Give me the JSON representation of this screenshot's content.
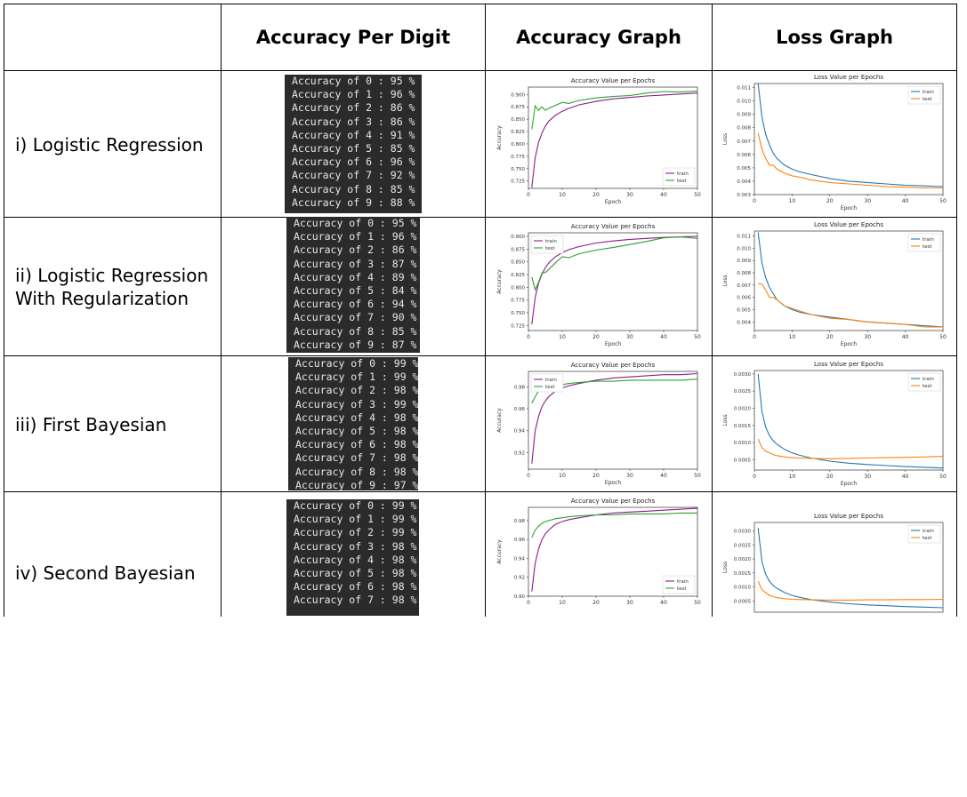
{
  "headers": [
    "",
    "Accuracy Per Digit",
    "Accuracy Graph",
    "Loss Graph"
  ],
  "rows": [
    {
      "label": [
        "i) Logistic Regression"
      ],
      "digits": [
        {
          "digit": "0",
          "pct": "95"
        },
        {
          "digit": "1",
          "pct": "96"
        },
        {
          "digit": "2",
          "pct": "86"
        },
        {
          "digit": "3",
          "pct": "86"
        },
        {
          "digit": "4",
          "pct": "91"
        },
        {
          "digit": "5",
          "pct": "85"
        },
        {
          "digit": "6",
          "pct": "96"
        },
        {
          "digit": "7",
          "pct": "92"
        },
        {
          "digit": "8",
          "pct": "85"
        },
        {
          "digit": "9",
          "pct": "88"
        }
      ]
    },
    {
      "label": [
        "ii) Logistic Regression",
        "With Regularization"
      ],
      "digits": [
        {
          "digit": "0",
          "pct": "95"
        },
        {
          "digit": "1",
          "pct": "96"
        },
        {
          "digit": "2",
          "pct": "86"
        },
        {
          "digit": "3",
          "pct": "87"
        },
        {
          "digit": "4",
          "pct": "89"
        },
        {
          "digit": "5",
          "pct": "84"
        },
        {
          "digit": "6",
          "pct": "94"
        },
        {
          "digit": "7",
          "pct": "90"
        },
        {
          "digit": "8",
          "pct": "85"
        },
        {
          "digit": "9",
          "pct": "87"
        }
      ]
    },
    {
      "label": [
        "iii) First Bayesian"
      ],
      "digits": [
        {
          "digit": "0",
          "pct": "99"
        },
        {
          "digit": "1",
          "pct": "99"
        },
        {
          "digit": "2",
          "pct": "98"
        },
        {
          "digit": "3",
          "pct": "99"
        },
        {
          "digit": "4",
          "pct": "98"
        },
        {
          "digit": "5",
          "pct": "98"
        },
        {
          "digit": "6",
          "pct": "98"
        },
        {
          "digit": "7",
          "pct": "98"
        },
        {
          "digit": "8",
          "pct": "98"
        },
        {
          "digit": "9",
          "pct": "97"
        }
      ]
    },
    {
      "label": [
        "iv) Second Bayesian"
      ],
      "digits": [
        {
          "digit": "0",
          "pct": "99"
        },
        {
          "digit": "1",
          "pct": "99"
        },
        {
          "digit": "2",
          "pct": "99"
        },
        {
          "digit": "3",
          "pct": "98"
        },
        {
          "digit": "4",
          "pct": "98"
        },
        {
          "digit": "5",
          "pct": "98"
        },
        {
          "digit": "6",
          "pct": "98"
        },
        {
          "digit": "7",
          "pct": "98"
        }
      ]
    }
  ],
  "chart_data": [
    {
      "type": "line",
      "title": "Accuracy Value per Epochs",
      "xlabel": "Epoch",
      "ylabel": "Accuracy",
      "xlim": [
        0,
        50
      ],
      "ylim": [
        0.71,
        0.915
      ],
      "x_ticks": [
        0,
        10,
        20,
        30,
        40,
        50
      ],
      "y_ticks": [
        "0.725",
        "0.750",
        "0.775",
        "0.800",
        "0.825",
        "0.850",
        "0.875",
        "0.900"
      ],
      "legend": "bottom-right",
      "x": [
        1,
        2,
        3,
        4,
        5,
        6,
        8,
        10,
        12,
        15,
        20,
        25,
        30,
        35,
        40,
        45,
        50
      ],
      "series": [
        {
          "name": "train",
          "color": "#8a1a8a",
          "values": [
            0.712,
            0.772,
            0.803,
            0.822,
            0.836,
            0.846,
            0.858,
            0.866,
            0.872,
            0.879,
            0.886,
            0.891,
            0.894,
            0.897,
            0.899,
            0.901,
            0.903
          ]
        },
        {
          "name": "test",
          "color": "#2ca02c",
          "values": [
            0.83,
            0.877,
            0.868,
            0.875,
            0.868,
            0.872,
            0.878,
            0.884,
            0.882,
            0.888,
            0.893,
            0.896,
            0.898,
            0.903,
            0.906,
            0.905,
            0.907
          ]
        }
      ]
    },
    {
      "type": "line",
      "title": "Loss Value per Epochs",
      "xlabel": "Epoch",
      "ylabel": "Loss",
      "xlim": [
        0,
        50
      ],
      "ylim": [
        0.003,
        0.0113
      ],
      "x_ticks": [
        0,
        10,
        20,
        30,
        40,
        50
      ],
      "y_ticks": [
        "0.003",
        "0.004",
        "0.005",
        "0.006",
        "0.007",
        "0.008",
        "0.009",
        "0.010",
        "0.011"
      ],
      "legend": "top-right",
      "x": [
        1,
        2,
        3,
        4,
        5,
        6,
        8,
        10,
        12,
        15,
        20,
        25,
        30,
        35,
        40,
        45,
        50
      ],
      "series": [
        {
          "name": "train",
          "color": "#1f77b4",
          "values": [
            0.0113,
            0.0088,
            0.0075,
            0.0067,
            0.0061,
            0.0057,
            0.0052,
            0.0049,
            0.0047,
            0.0045,
            0.0042,
            0.004,
            0.0039,
            0.0038,
            0.0037,
            0.00365,
            0.0036
          ]
        },
        {
          "name": "test",
          "color": "#ff7f0e",
          "values": [
            0.0076,
            0.0064,
            0.0057,
            0.0052,
            0.0052,
            0.0049,
            0.0046,
            0.0044,
            0.0043,
            0.0041,
            0.0039,
            0.0038,
            0.0037,
            0.0036,
            0.00355,
            0.0035,
            0.0035
          ]
        }
      ]
    },
    {
      "type": "line",
      "title": "Accuracy Value per Epochs",
      "xlabel": "Epoch",
      "ylabel": "Accuracy",
      "xlim": [
        0,
        50
      ],
      "ylim": [
        0.715,
        0.907
      ],
      "x_ticks": [
        0,
        10,
        20,
        30,
        40,
        50
      ],
      "y_ticks": [
        "0.725",
        "0.750",
        "0.775",
        "0.800",
        "0.825",
        "0.850",
        "0.875",
        "0.900"
      ],
      "legend": "top-left",
      "x": [
        1,
        2,
        3,
        4,
        5,
        6,
        8,
        10,
        12,
        15,
        20,
        25,
        30,
        35,
        40,
        45,
        50
      ],
      "series": [
        {
          "name": "train",
          "color": "#8a1a8a",
          "values": [
            0.727,
            0.78,
            0.808,
            0.826,
            0.838,
            0.848,
            0.86,
            0.868,
            0.874,
            0.88,
            0.887,
            0.891,
            0.894,
            0.896,
            0.898,
            0.899,
            0.9
          ]
        },
        {
          "name": "test",
          "color": "#2ca02c",
          "values": [
            0.82,
            0.795,
            0.81,
            0.828,
            0.829,
            0.835,
            0.848,
            0.86,
            0.858,
            0.866,
            0.873,
            0.878,
            0.884,
            0.89,
            0.897,
            0.899,
            0.896
          ]
        }
      ]
    },
    {
      "type": "line",
      "title": "Loss Value per Epochs",
      "xlabel": "Epoch",
      "ylabel": "Loss",
      "xlim": [
        0,
        50
      ],
      "ylim": [
        0.0033,
        0.0114
      ],
      "x_ticks": [
        0,
        10,
        20,
        30,
        40,
        50
      ],
      "y_ticks": [
        "0.004",
        "0.005",
        "0.006",
        "0.007",
        "0.008",
        "0.009",
        "0.010",
        "0.011"
      ],
      "legend": "top-right",
      "x": [
        1,
        2,
        3,
        4,
        5,
        6,
        8,
        10,
        12,
        15,
        20,
        25,
        30,
        35,
        40,
        45,
        50
      ],
      "series": [
        {
          "name": "train",
          "color": "#1f77b4",
          "values": [
            0.0113,
            0.0088,
            0.0076,
            0.0068,
            0.0063,
            0.0058,
            0.0053,
            0.005,
            0.0048,
            0.0046,
            0.0044,
            0.0042,
            0.004,
            0.0039,
            0.0038,
            0.0037,
            0.0036
          ]
        },
        {
          "name": "test",
          "color": "#ff7f0e",
          "values": [
            0.0071,
            0.0071,
            0.0066,
            0.006,
            0.006,
            0.0058,
            0.0053,
            0.0051,
            0.0049,
            0.0046,
            0.0043,
            0.0042,
            0.004,
            0.0039,
            0.0038,
            0.0036,
            0.0036
          ]
        }
      ]
    },
    {
      "type": "line",
      "title": "Accuracy Value per Epochs",
      "xlabel": "Epoch",
      "ylabel": "Accuracy",
      "xlim": [
        0,
        50
      ],
      "ylim": [
        0.905,
        0.994
      ],
      "x_ticks": [
        0,
        10,
        20,
        30,
        40,
        50
      ],
      "y_ticks": [
        "0.92",
        "0.94",
        "0.96",
        "0.98"
      ],
      "legend": "top-left",
      "x": [
        1,
        2,
        3,
        4,
        5,
        6,
        8,
        10,
        12,
        15,
        20,
        25,
        30,
        35,
        40,
        45,
        50
      ],
      "series": [
        {
          "name": "train",
          "color": "#8a1a8a",
          "values": [
            0.91,
            0.94,
            0.953,
            0.962,
            0.967,
            0.971,
            0.976,
            0.979,
            0.981,
            0.983,
            0.986,
            0.988,
            0.989,
            0.99,
            0.991,
            0.991,
            0.992
          ]
        },
        {
          "name": "test",
          "color": "#2ca02c",
          "values": [
            0.965,
            0.971,
            0.976,
            0.978,
            0.979,
            0.98,
            0.981,
            0.982,
            0.983,
            0.984,
            0.985,
            0.985,
            0.986,
            0.986,
            0.986,
            0.986,
            0.987
          ]
        }
      ]
    },
    {
      "type": "line",
      "title": "Loss Value per Epochs",
      "xlabel": "Epoch",
      "ylabel": "Loss",
      "xlim": [
        0,
        50
      ],
      "ylim": [
        0.0002,
        0.0031
      ],
      "x_ticks": [
        0,
        10,
        20,
        30,
        40,
        50
      ],
      "y_ticks": [
        "0.0005",
        "0.0010",
        "0.0015",
        "0.0020",
        "0.0025",
        "0.0030"
      ],
      "legend": "top-right",
      "x": [
        1,
        2,
        3,
        4,
        5,
        6,
        8,
        10,
        12,
        15,
        20,
        25,
        30,
        35,
        40,
        45,
        50
      ],
      "series": [
        {
          "name": "train",
          "color": "#1f77b4",
          "values": [
            0.003,
            0.0019,
            0.00145,
            0.0012,
            0.00105,
            0.00095,
            0.0008,
            0.0007,
            0.00063,
            0.00055,
            0.00046,
            0.0004,
            0.00036,
            0.00033,
            0.0003,
            0.00028,
            0.00026
          ]
        },
        {
          "name": "test",
          "color": "#ff7f0e",
          "values": [
            0.0011,
            0.00085,
            0.00075,
            0.0007,
            0.00065,
            0.00062,
            0.00058,
            0.00056,
            0.00055,
            0.00054,
            0.00053,
            0.00054,
            0.00055,
            0.00056,
            0.00057,
            0.00058,
            0.0006
          ]
        }
      ]
    },
    {
      "type": "line",
      "title": "Accuracy Value per Epochs",
      "xlabel": "",
      "ylabel": "Accuracy",
      "xlim": [
        0,
        50
      ],
      "ylim": [
        0.9,
        0.994
      ],
      "x_ticks": [
        0,
        10,
        20,
        30,
        40,
        50
      ],
      "y_ticks": [
        "0.90",
        "0.92",
        "0.94",
        "0.96",
        "0.98"
      ],
      "legend": "bottom-right",
      "x": [
        1,
        2,
        3,
        4,
        5,
        6,
        8,
        10,
        12,
        15,
        20,
        25,
        30,
        35,
        40,
        45,
        50
      ],
      "series": [
        {
          "name": "train",
          "color": "#8a1a8a",
          "values": [
            0.905,
            0.935,
            0.95,
            0.96,
            0.966,
            0.97,
            0.976,
            0.979,
            0.981,
            0.983,
            0.986,
            0.988,
            0.989,
            0.99,
            0.991,
            0.992,
            0.993
          ]
        },
        {
          "name": "test",
          "color": "#2ca02c",
          "values": [
            0.962,
            0.97,
            0.974,
            0.977,
            0.979,
            0.98,
            0.982,
            0.983,
            0.984,
            0.985,
            0.986,
            0.986,
            0.987,
            0.987,
            0.987,
            0.988,
            0.988
          ]
        }
      ]
    },
    {
      "type": "line",
      "title": "Loss Value per Epochs",
      "xlabel": "",
      "ylabel": "Loss",
      "xlim": [
        0,
        50
      ],
      "ylim": [
        0.0001,
        0.0033
      ],
      "x_ticks": [],
      "y_ticks": [
        "0.0005",
        "0.0010",
        "0.0015",
        "0.0020",
        "0.0025",
        "0.0030"
      ],
      "legend": "top-right",
      "x": [
        1,
        2,
        3,
        4,
        5,
        6,
        8,
        10,
        12,
        15,
        20,
        25,
        30,
        35,
        40,
        45,
        50
      ],
      "series": [
        {
          "name": "train",
          "color": "#1f77b4",
          "values": [
            0.0031,
            0.0019,
            0.00145,
            0.0012,
            0.00105,
            0.00095,
            0.0008,
            0.0007,
            0.00063,
            0.00055,
            0.00046,
            0.0004,
            0.00036,
            0.00033,
            0.0003,
            0.00028,
            0.00026
          ]
        },
        {
          "name": "test",
          "color": "#ff7f0e",
          "values": [
            0.0012,
            0.0009,
            0.0008,
            0.0007,
            0.00065,
            0.00062,
            0.00058,
            0.00056,
            0.00055,
            0.00054,
            0.00053,
            0.00053,
            0.00054,
            0.00054,
            0.00055,
            0.00055,
            0.00056
          ]
        }
      ]
    }
  ]
}
